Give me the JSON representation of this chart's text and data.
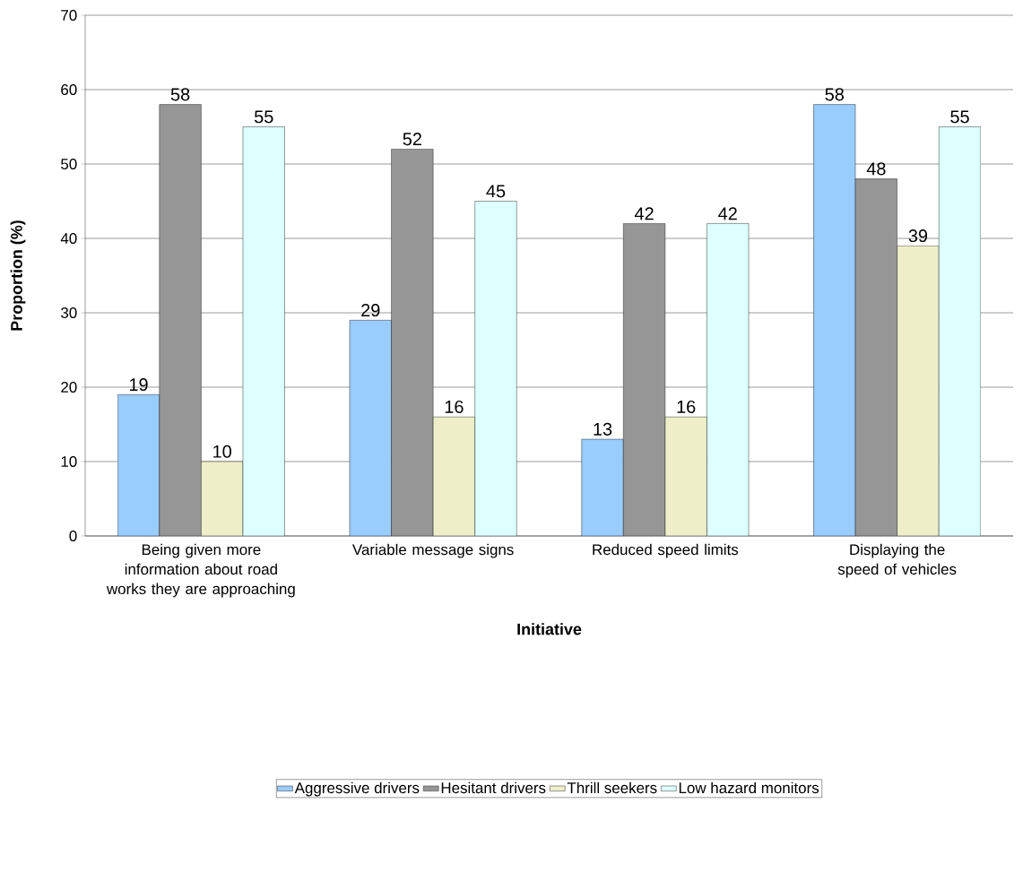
{
  "chart_data": {
    "type": "bar",
    "xlabel": "Initiative",
    "ylabel": "Proportion (%)",
    "categories": [
      "Being given more information about road works they are approaching",
      "Variable message signs",
      "Reduced speed limits",
      "Displaying the speed of vehicles"
    ],
    "series": [
      {
        "name": "Aggressive drivers",
        "color": "#99ccff",
        "values": [
          19,
          29,
          13,
          58
        ]
      },
      {
        "name": "Hesitant drivers",
        "color": "#969696",
        "values": [
          58,
          52,
          42,
          48
        ]
      },
      {
        "name": "Thrill seekers",
        "color": "#eeeec8",
        "values": [
          10,
          16,
          16,
          39
        ]
      },
      {
        "name": "Low hazard monitors",
        "color": "#ddffff",
        "values": [
          55,
          45,
          42,
          55
        ]
      }
    ],
    "ylim": [
      0,
      70
    ],
    "yticks": [
      0,
      10,
      20,
      30,
      40,
      50,
      60,
      70
    ],
    "grid": "y",
    "legend": "bottom",
    "data_labels": true
  }
}
